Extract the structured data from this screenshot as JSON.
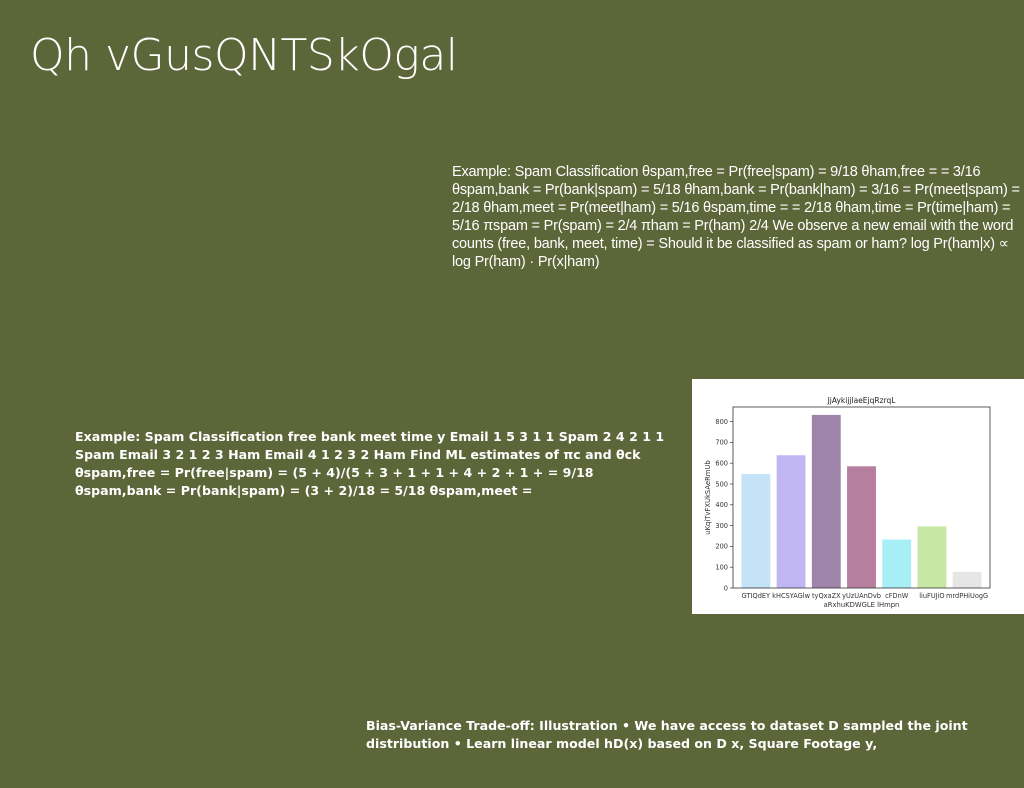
{
  "slide": {
    "title": "Qh vGusQNTSkOgal"
  },
  "text_blocks": {
    "block1": "Example: Spam Classification θspam,free = Pr(free|spam) = 9/18 θham,free = = 3/16 θspam,bank = Pr(bank|spam) = 5/18 θham,bank = Pr(bank|ham) = 3/16 = Pr(meet|spam) = 2/18 θham,meet = Pr(meet|ham) = 5/16 θspam,time = = 2/18 θham,time = Pr(time|ham) = 5/16 πspam = Pr(spam) = 2/4 πham = Pr(ham) 2/4 We observe a new email with the word counts (free, bank, meet, time) = Should it be classified as spam or ham? log Pr(ham|x) ∝ log Pr(ham) · Pr(x|ham)",
    "block2": "Example: Spam Classification free bank meet time y Email 1 5 3 1 1 Spam 2 4 2 1 1 Spam Email 3 2 1 2 3 Ham Email 4 1 2 3 2 Ham Find ML estimates of πc and θck θspam,free = Pr(free|spam) = (5 + 4)/(5 + 3 + 1 + 1 + 4 + 2 + 1 + = 9/18 θspam,bank = Pr(bank|spam) = (3 + 2)/18 = 5/18 θspam,meet =",
    "block3": "Bias-Variance Trade-off: Illustration • We have access to dataset D sampled the joint distribution • Learn linear model hD(x) based on D x, Square Footage y,"
  },
  "chart_data": {
    "type": "bar",
    "title": "JjAykijjlaeEjqRzrqL",
    "xlabel": "aRxhuKDWGLE lHmpn",
    "ylabel": "uKqiTvFXUkSAeRmUb",
    "categories": [
      "GTIQdEY",
      "kHCSYAGlw",
      "tyQxaZX",
      "yUzUAnDvb",
      "cFDnW",
      "liuFUJiO",
      "mrdPHiUogG"
    ],
    "values": [
      548,
      638,
      832,
      585,
      233,
      296,
      78
    ],
    "colors": [
      "#c5e3f6",
      "#c0b7f2",
      "#9d84a8",
      "#b77f9f",
      "#a8eef7",
      "#c7e8a4",
      "#e6e6e6"
    ],
    "ylim": [
      0,
      870
    ],
    "yticks": [
      0,
      100,
      200,
      300,
      400,
      500,
      600,
      700,
      800
    ],
    "grid": false,
    "legend": "none"
  }
}
